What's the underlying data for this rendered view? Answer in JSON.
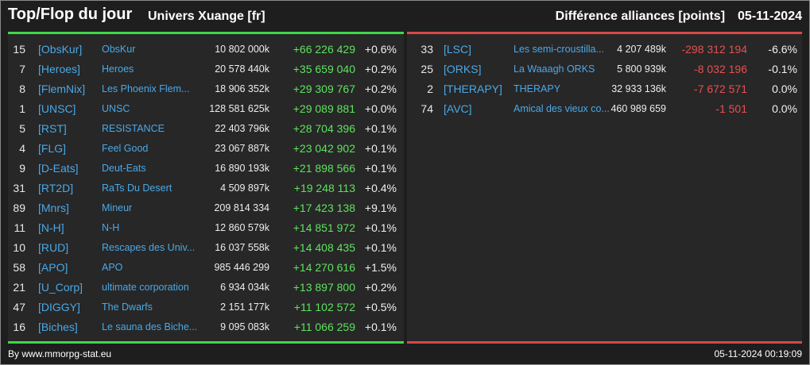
{
  "header": {
    "title": "Top/Flop du jour",
    "subtitle": "Univers Xuange [fr]",
    "right_title": "Différence alliances [points]",
    "date": "05-11-2024"
  },
  "colors": {
    "accent_top": "#3fd84a",
    "accent_flop": "#d84848",
    "link": "#4aa8e8",
    "positive": "#5ee35e",
    "negative": "#e65050"
  },
  "top": [
    {
      "rank": "15",
      "tag": "[ObsKur]",
      "name": "ObsKur",
      "points": "10 802 000k",
      "diff": "+66 226 429",
      "pct": "+0.6%"
    },
    {
      "rank": "7",
      "tag": "[Heroes]",
      "name": "Heroes",
      "points": "20 578 440k",
      "diff": "+35 659 040",
      "pct": "+0.2%"
    },
    {
      "rank": "8",
      "tag": "[FlemNix]",
      "name": "Les Phoenix Flem...",
      "points": "18 906 352k",
      "diff": "+29 309 767",
      "pct": "+0.2%"
    },
    {
      "rank": "1",
      "tag": "[UNSC]",
      "name": "UNSC",
      "points": "128 581 625k",
      "diff": "+29 089 881",
      "pct": "+0.0%"
    },
    {
      "rank": "5",
      "tag": "[RST]",
      "name": "RESISTANCE",
      "points": "22 403 796k",
      "diff": "+28 704 396",
      "pct": "+0.1%"
    },
    {
      "rank": "4",
      "tag": "[FLG]",
      "name": "Feel Good",
      "points": "23 067 887k",
      "diff": "+23 042 902",
      "pct": "+0.1%"
    },
    {
      "rank": "9",
      "tag": "[D-Eats]",
      "name": "Deut-Eats",
      "points": "16 890 193k",
      "diff": "+21 898 566",
      "pct": "+0.1%"
    },
    {
      "rank": "31",
      "tag": "[RT2D]",
      "name": "RaTs Du Desert",
      "points": "4 509 897k",
      "diff": "+19 248 113",
      "pct": "+0.4%"
    },
    {
      "rank": "89",
      "tag": "[Mnrs]",
      "name": "Mineur",
      "points": "209 814 334",
      "diff": "+17 423 138",
      "pct": "+9.1%"
    },
    {
      "rank": "11",
      "tag": "[N-H]",
      "name": "N-H",
      "points": "12 860 579k",
      "diff": "+14 851 972",
      "pct": "+0.1%"
    },
    {
      "rank": "10",
      "tag": "[RUD]",
      "name": "Rescapes des Univ...",
      "points": "16 037 558k",
      "diff": "+14 408 435",
      "pct": "+0.1%"
    },
    {
      "rank": "58",
      "tag": "[APO]",
      "name": "APO",
      "points": "985 446 299",
      "diff": "+14 270 616",
      "pct": "+1.5%"
    },
    {
      "rank": "21",
      "tag": "[U_Corp]",
      "name": "ultimate corporation",
      "points": "6 934 034k",
      "diff": "+13 897 800",
      "pct": "+0.2%"
    },
    {
      "rank": "47",
      "tag": "[DIGGY]",
      "name": "The Dwarfs",
      "points": "2 151 177k",
      "diff": "+11 102 572",
      "pct": "+0.5%"
    },
    {
      "rank": "16",
      "tag": "[Biches]",
      "name": "Le sauna des Biche...",
      "points": "9 095 083k",
      "diff": "+11 066 259",
      "pct": "+0.1%"
    }
  ],
  "flop": [
    {
      "rank": "33",
      "tag": "[LSC]",
      "name": "Les semi-croustilla...",
      "points": "4 207 489k",
      "diff": "-298 312 194",
      "pct": "-6.6%"
    },
    {
      "rank": "25",
      "tag": "[ORKS]",
      "name": "La Waaagh ORKS",
      "points": "5 800 939k",
      "diff": "-8 032 196",
      "pct": "-0.1%"
    },
    {
      "rank": "2",
      "tag": "[THERAPY]",
      "name": "THERAPY",
      "points": "32 933 136k",
      "diff": "-7 672 571",
      "pct": "0.0%"
    },
    {
      "rank": "74",
      "tag": "[AVC]",
      "name": "Amical des vieux co...",
      "points": "460 989 659",
      "diff": "-1 501",
      "pct": "0.0%"
    }
  ],
  "footer": {
    "source": "By www.mmorpg-stat.eu",
    "timestamp": "05-11-2024 00:19:09"
  }
}
